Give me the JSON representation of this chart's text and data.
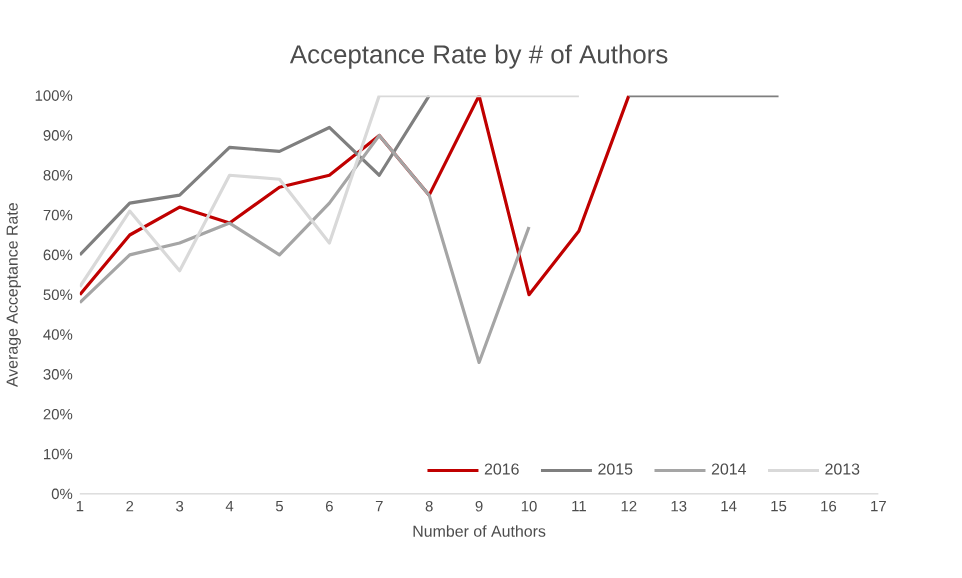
{
  "chart_data": {
    "type": "line",
    "title": "Acceptance Rate by # of Authors",
    "xlabel": "Number  of Authors",
    "ylabel": "Average Acceptance Rate",
    "x": [
      1,
      2,
      3,
      4,
      5,
      6,
      7,
      8,
      9,
      10,
      11,
      12,
      13,
      14,
      15
    ],
    "xlim": [
      1,
      17
    ],
    "xticks": [
      1,
      2,
      3,
      4,
      5,
      6,
      7,
      8,
      9,
      10,
      11,
      12,
      13,
      14,
      15,
      16,
      17
    ],
    "ylim": [
      0,
      100
    ],
    "yticks": [
      {
        "value": 0,
        "label": "0%"
      },
      {
        "value": 10,
        "label": "10%"
      },
      {
        "value": 20,
        "label": "20%"
      },
      {
        "value": 30,
        "label": "30%"
      },
      {
        "value": 40,
        "label": "40%"
      },
      {
        "value": 50,
        "label": "50%"
      },
      {
        "value": 60,
        "label": "60%"
      },
      {
        "value": 70,
        "label": "70%"
      },
      {
        "value": 80,
        "label": "80%"
      },
      {
        "value": 90,
        "label": "90%"
      },
      {
        "value": 100,
        "label": "100%"
      }
    ],
    "grid": false,
    "legend": "bottom right",
    "marker": "none",
    "line_style": "solid",
    "series": [
      {
        "name": "2016",
        "color": "#c00000",
        "values": [
          50,
          65,
          72,
          68,
          77,
          80,
          90,
          75,
          100,
          50,
          66,
          100,
          null,
          null,
          null
        ]
      },
      {
        "name": "2015",
        "color": "#7f7f7f",
        "values": [
          60,
          73,
          75,
          87,
          86,
          92,
          80,
          100,
          null,
          null,
          null,
          100,
          100,
          100,
          100
        ]
      },
      {
        "name": "2014",
        "color": "#a5a5a5",
        "values": [
          48,
          60,
          63,
          68,
          60,
          73,
          90,
          75,
          33,
          67,
          null,
          null,
          null,
          null,
          null
        ]
      },
      {
        "name": "2013",
        "color": "#d9d9d9",
        "values": [
          52,
          71,
          56,
          80,
          79,
          63,
          100,
          100,
          100,
          100,
          100,
          null,
          null,
          null,
          null
        ]
      }
    ]
  }
}
